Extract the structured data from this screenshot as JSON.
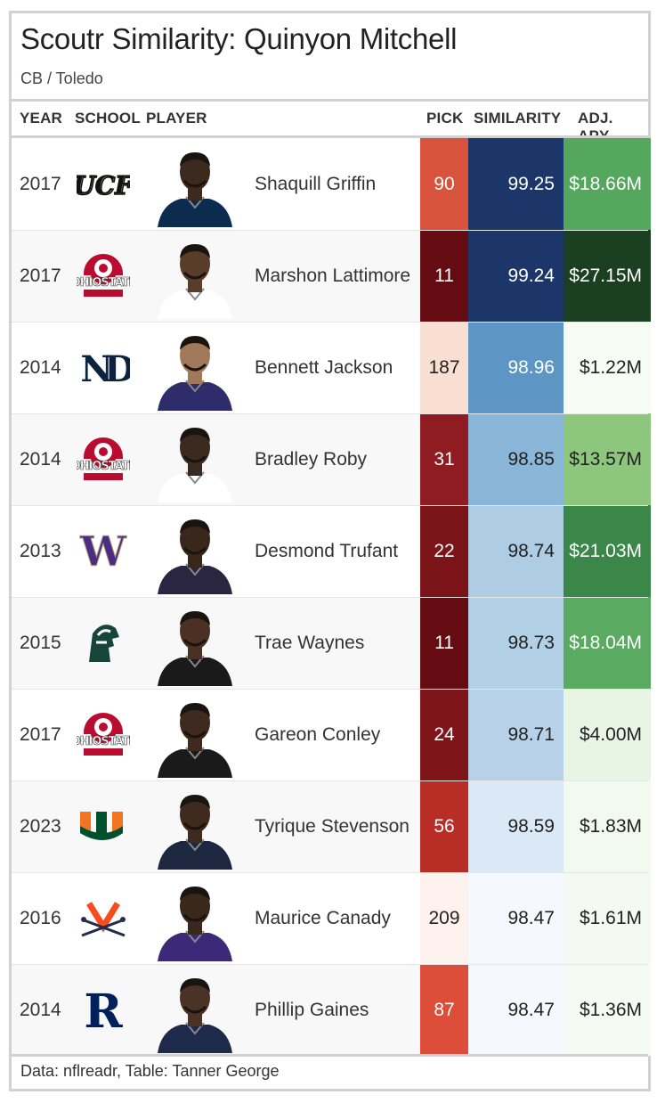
{
  "title": "Scoutr Similarity: Quinyon Mitchell",
  "subtitle": "CB / Toledo",
  "footer": "Data: nflreadr, Table: Tanner George",
  "columns": {
    "year": "YEAR",
    "school": "SCHOOL",
    "player": "PLAYER",
    "pick": "PICK",
    "similarity": "SIMILARITY",
    "apy": "ADJ. APY"
  },
  "chart_data": {
    "type": "table",
    "title": "Scoutr Similarity: Quinyon Mitchell",
    "subtitle": "CB / Toledo",
    "columns": [
      "YEAR",
      "SCHOOL",
      "PLAYER",
      "PICK",
      "SIMILARITY",
      "ADJ. APY"
    ],
    "rows": [
      {
        "year": "2017",
        "school_logo": "ucf-logo",
        "player": "Shaquill Griffin",
        "pick": "90",
        "similarity": "99.25",
        "apy": "$18.66M",
        "pick_color": "#d9533c",
        "sim_color": "#1c3669",
        "apy_color": "#56a75e",
        "sim_text": "#ffffff",
        "apy_text": "#ffffff",
        "pick_text": "#ffffff",
        "jersey": "#0b2c4f",
        "skin": "#3d2a1e"
      },
      {
        "year": "2017",
        "school_logo": "ohio-state-logo",
        "player": "Marshon Lattimore",
        "pick": "11",
        "similarity": "99.24",
        "apy": "$27.15M",
        "pick_color": "#650b12",
        "sim_color": "#1c3669",
        "apy_color": "#1a3f21",
        "sim_text": "#ffffff",
        "apy_text": "#ffffff",
        "pick_text": "#ffffff",
        "jersey": "#ffffff",
        "skin": "#5a3c2a"
      },
      {
        "year": "2014",
        "school_logo": "notre-dame-logo",
        "player": "Bennett Jackson",
        "pick": "187",
        "similarity": "98.96",
        "apy": "$1.22M",
        "pick_color": "#f8dfd2",
        "sim_color": "#5d95c4",
        "apy_color": "#f6fbf4",
        "sim_text": "#ffffff",
        "apy_text": "#222222",
        "pick_text": "#222222",
        "jersey": "#2e2c6b",
        "skin": "#a0785a"
      },
      {
        "year": "2014",
        "school_logo": "ohio-state-logo",
        "player": "Bradley Roby",
        "pick": "31",
        "similarity": "98.85",
        "apy": "$13.57M",
        "pick_color": "#8e1c20",
        "sim_color": "#8ab6da",
        "apy_color": "#8dc67d",
        "sim_text": "#222222",
        "apy_text": "#222222",
        "pick_text": "#ffffff",
        "jersey": "#ffffff",
        "skin": "#3a2a20"
      },
      {
        "year": "2013",
        "school_logo": "washington-logo",
        "player": "Desmond Trufant",
        "pick": "22",
        "similarity": "98.74",
        "apy": "$21.03M",
        "pick_color": "#7a1418",
        "sim_color": "#aecde5",
        "apy_color": "#3b8749",
        "sim_text": "#222222",
        "apy_text": "#ffffff",
        "pick_text": "#ffffff",
        "jersey": "#2a2540",
        "skin": "#3a271c"
      },
      {
        "year": "2015",
        "school_logo": "michigan-state-logo",
        "player": "Trae Waynes",
        "pick": "11",
        "similarity": "98.73",
        "apy": "$18.04M",
        "pick_color": "#650b12",
        "sim_color": "#b2d0e6",
        "apy_color": "#5aab61",
        "sim_text": "#222222",
        "apy_text": "#ffffff",
        "pick_text": "#ffffff",
        "jersey": "#1a1a1a",
        "skin": "#4a3124"
      },
      {
        "year": "2017",
        "school_logo": "ohio-state-logo",
        "player": "Gareon Conley",
        "pick": "24",
        "similarity": "98.71",
        "apy": "$4.00M",
        "pick_color": "#7d1519",
        "sim_color": "#b7d2e8",
        "apy_color": "#e9f5e4",
        "sim_text": "#222222",
        "apy_text": "#222222",
        "pick_text": "#ffffff",
        "jersey": "#1a1a1a",
        "skin": "#3f2a1f"
      },
      {
        "year": "2023",
        "school_logo": "miami-logo",
        "player": "Tyrique Stevenson",
        "pick": "56",
        "similarity": "98.59",
        "apy": "$1.83M",
        "pick_color": "#b82e26",
        "sim_color": "#dbe8f5",
        "apy_color": "#f2f9ef",
        "sim_text": "#222222",
        "apy_text": "#222222",
        "pick_text": "#ffffff",
        "jersey": "#1e2740",
        "skin": "#3e2a1e"
      },
      {
        "year": "2016",
        "school_logo": "virginia-logo",
        "player": "Maurice Canady",
        "pick": "209",
        "similarity": "98.47",
        "apy": "$1.61M",
        "pick_color": "#fdf2ee",
        "sim_color": "#f5f9fd",
        "apy_color": "#f4faf2",
        "sim_text": "#222222",
        "apy_text": "#222222",
        "pick_text": "#222222",
        "jersey": "#3c2a78",
        "skin": "#3a281d"
      },
      {
        "year": "2014",
        "school_logo": "rice-logo",
        "player": "Phillip Gaines",
        "pick": "87",
        "similarity": "98.47",
        "apy": "$1.36M",
        "pick_color": "#dc4e39",
        "sim_color": "#f5f9fd",
        "apy_color": "#f5faf3",
        "sim_text": "#222222",
        "apy_text": "#222222",
        "pick_text": "#ffffff",
        "jersey": "#1d2a4a",
        "skin": "#4a3226"
      }
    ]
  }
}
